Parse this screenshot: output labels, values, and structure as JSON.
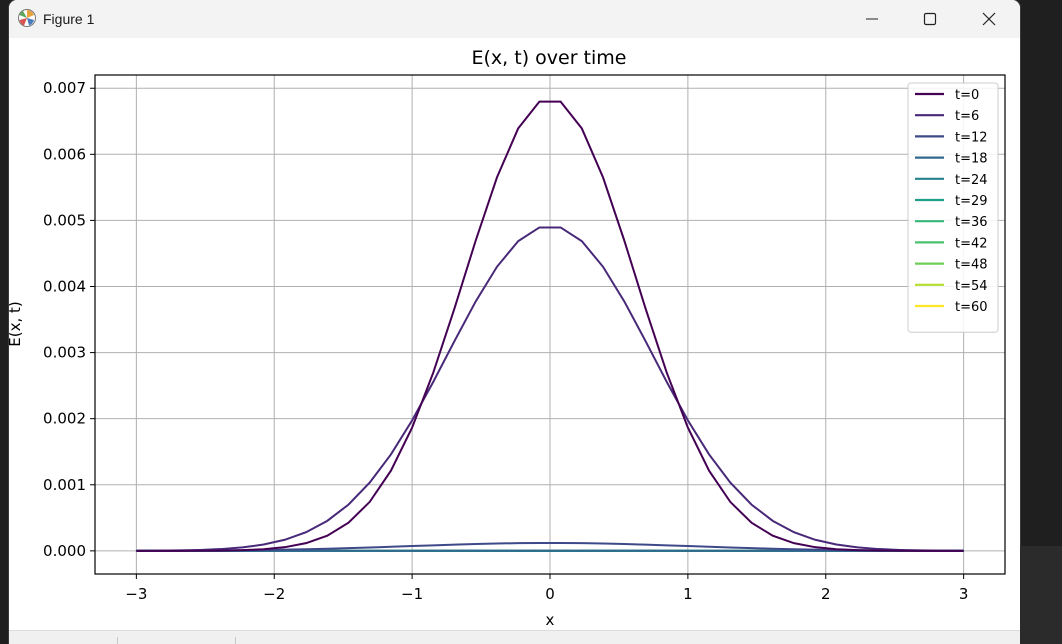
{
  "window": {
    "title": "Figure 1",
    "icon": "matplotlib-icon",
    "controls": [
      "minimize-icon",
      "maximize-icon",
      "close-icon"
    ]
  },
  "chart_data": {
    "type": "line",
    "title": "E(x, t) over time",
    "xlabel": "x",
    "ylabel": "E(x, t)",
    "xlim": [
      -3.3,
      3.3
    ],
    "ylim": [
      -0.00035,
      0.0072
    ],
    "xticks": [
      -3,
      -2,
      -1,
      0,
      1,
      2,
      3
    ],
    "xtick_labels": [
      "−3",
      "−2",
      "−1",
      "0",
      "1",
      "2",
      "3"
    ],
    "yticks": [
      0.0,
      0.001,
      0.002,
      0.003,
      0.004,
      0.005,
      0.006,
      0.007
    ],
    "ytick_labels": [
      "0.000",
      "0.001",
      "0.002",
      "0.003",
      "0.004",
      "0.005",
      "0.006",
      "0.007"
    ],
    "grid": true,
    "legend_position": "upper-right",
    "colormap": "viridis",
    "x_range": [
      -3,
      3
    ],
    "num_points": 40,
    "series": [
      {
        "name": "t=0",
        "color": "#440154",
        "amplitude": 0.00685,
        "sigma": 0.62
      },
      {
        "name": "t=6",
        "color": "#482878",
        "amplitude": 0.00492,
        "sigma": 0.74
      },
      {
        "name": "t=12",
        "color": "#3e4989",
        "amplitude": 0.00012,
        "sigma": 1.0
      },
      {
        "name": "t=18",
        "color": "#31688e",
        "amplitude": 4e-06,
        "sigma": 1.1
      },
      {
        "name": "t=24",
        "color": "#26828e",
        "amplitude": 0.0,
        "sigma": 1.1
      },
      {
        "name": "t=29",
        "color": "#1f9e89",
        "amplitude": 0.0,
        "sigma": 1.1
      },
      {
        "name": "t=36",
        "color": "#35b779",
        "amplitude": 0.0,
        "sigma": 1.1
      },
      {
        "name": "t=42",
        "color": "#4ac16d",
        "amplitude": 0.0,
        "sigma": 1.1
      },
      {
        "name": "t=48",
        "color": "#6ece58",
        "amplitude": 0.0,
        "sigma": 1.1
      },
      {
        "name": "t=54",
        "color": "#b5de2b",
        "amplitude": 0.0,
        "sigma": 1.1
      },
      {
        "name": "t=60",
        "color": "#fde725",
        "amplitude": 0.0,
        "sigma": 1.1
      }
    ]
  }
}
